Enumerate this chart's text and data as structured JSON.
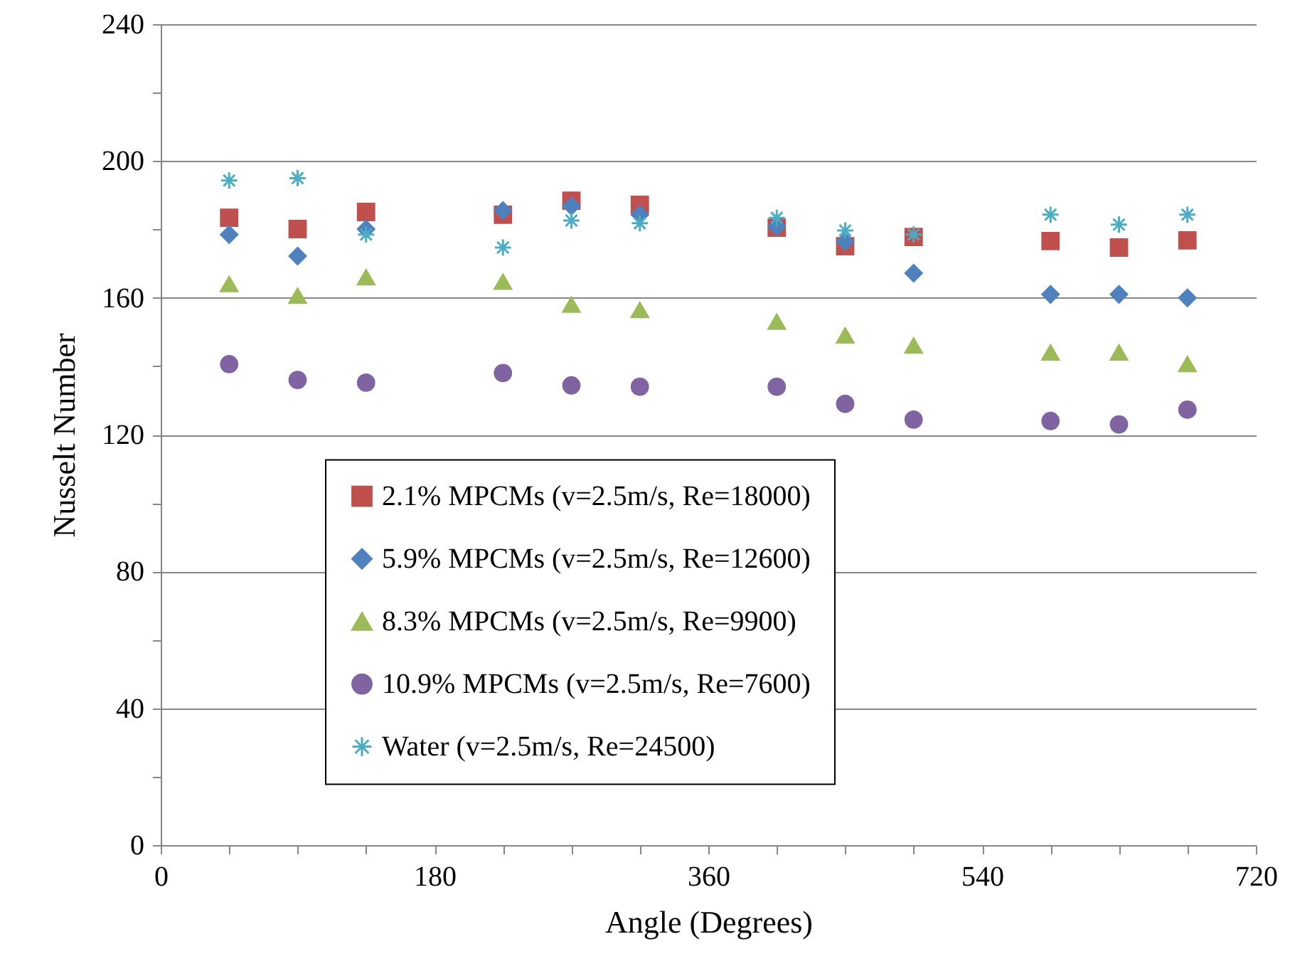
{
  "chart_data": {
    "type": "scatter",
    "xlabel": "Angle (Degrees)",
    "ylabel": "Nusselt Number",
    "xlim": [
      0,
      720
    ],
    "xticks": [
      0,
      {
        "value": 45,
        "label": null
      },
      {
        "value": 90,
        "label": null
      },
      {
        "value": 135,
        "label": null
      },
      180,
      {
        "value": 225,
        "label": null
      },
      {
        "value": 270,
        "label": null
      },
      {
        "value": 315,
        "label": null
      },
      360,
      {
        "value": 405,
        "label": null
      },
      {
        "value": 450,
        "label": null
      },
      {
        "value": 495,
        "label": null
      },
      540,
      {
        "value": 585,
        "label": null
      },
      {
        "value": 630,
        "label": null
      },
      {
        "value": 675,
        "label": null
      },
      720
    ],
    "ylim": [
      0,
      240
    ],
    "yticks": [
      0,
      {
        "value": 20,
        "label": null
      },
      40,
      {
        "value": 60,
        "label": null
      },
      80,
      {
        "value": 100,
        "label": null
      },
      120,
      {
        "value": 140,
        "label": null
      },
      160,
      {
        "value": 180,
        "label": null
      },
      200,
      {
        "value": 220,
        "label": null
      },
      240
    ],
    "grid": "y",
    "legend": "bottom",
    "x": [
      45,
      90,
      135,
      225,
      270,
      315,
      405,
      450,
      495,
      585,
      630,
      675
    ],
    "series": [
      {
        "name": "2.1% MPCMs (v=2.5m/s, Re=18000)",
        "color": "#c0504d",
        "marker": "square",
        "values": [
          183.4,
          180.1,
          185.1,
          184.3,
          188.4,
          187.2,
          180.5,
          175.1,
          177.8,
          176.6,
          174.7,
          176.8
        ]
      },
      {
        "name": "5.9% MPCMs (v=2.5m/s, Re=12600)",
        "color": "#4f81bd",
        "marker": "diamond",
        "values": [
          178.5,
          172.2,
          180.1,
          185.5,
          186.8,
          184.3,
          180.8,
          176.4,
          167.2,
          161,
          161,
          160
        ]
      },
      {
        "name": "8.3% MPCMs (v=2.5m/s, Re=9900)",
        "color": "#9bbb59",
        "marker": "triangle",
        "values": [
          164,
          160.6,
          166,
          164.7,
          158,
          156.4,
          153,
          149,
          146,
          144,
          144,
          140.6
        ]
      },
      {
        "name": "10.9% MPCMs (v=2.5m/s, Re=7600)",
        "color": "#8064a2",
        "marker": "circle",
        "values": [
          140.6,
          136,
          135.2,
          138,
          134.4,
          134,
          134,
          129,
          124.4,
          124,
          123,
          127.3
        ]
      },
      {
        "name": "Water (v=2.5m/s, Re=24500)",
        "color": "#4bacc6",
        "marker": "cross",
        "values": [
          194.3,
          195,
          178.5,
          174.7,
          182.6,
          181.8,
          183.4,
          179.7,
          178.5,
          184.3,
          181.4,
          184.3
        ]
      }
    ]
  }
}
